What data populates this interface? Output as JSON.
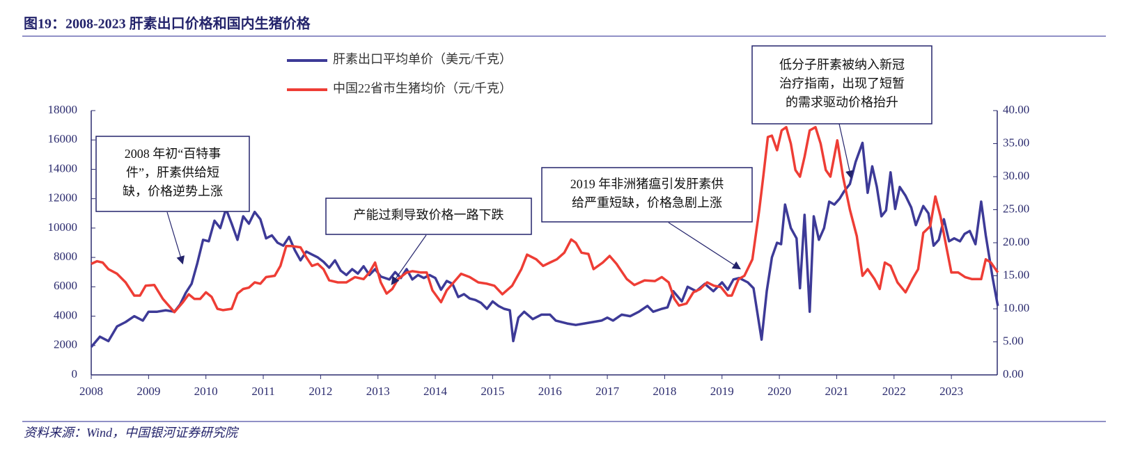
{
  "chart_data": {
    "type": "line",
    "title": "图19：2008-2023 肝素出口价格和国内生猪价格",
    "source": "资料来源：Wind，中国银河证券研究院",
    "xlim": [
      2008,
      2023.8
    ],
    "xticks": [
      2008,
      2009,
      2010,
      2011,
      2012,
      2013,
      2014,
      2015,
      2016,
      2017,
      2018,
      2019,
      2020,
      2021,
      2022,
      2023
    ],
    "ylim": [
      0,
      18000
    ],
    "yticks": [
      0,
      2000,
      4000,
      6000,
      8000,
      10000,
      12000,
      14000,
      16000,
      18000
    ],
    "y2lim": [
      0,
      40
    ],
    "y2ticks": [
      {
        "value": 0,
        "label": "0.00"
      },
      {
        "value": 5,
        "label": "5.00"
      },
      {
        "value": 10,
        "label": "10.00"
      },
      {
        "value": 15,
        "label": "15.00"
      },
      {
        "value": 20,
        "label": "20.00"
      },
      {
        "value": 25,
        "label": "25.00"
      },
      {
        "value": 30,
        "label": "30.00"
      },
      {
        "value": 35,
        "label": "35.00"
      },
      {
        "value": 40,
        "label": "40.00"
      }
    ],
    "legend": "top-left",
    "series": [
      {
        "name": "肝素出口平均单价（美元/千克）",
        "color": "#3d3a97",
        "axis": "y",
        "x": [
          2008.0,
          2008.15,
          2008.3,
          2008.45,
          2008.6,
          2008.75,
          2008.9,
          2009.0,
          2009.15,
          2009.3,
          2009.45,
          2009.55,
          2009.65,
          2009.75,
          2009.85,
          2009.95,
          2010.05,
          2010.15,
          2010.25,
          2010.35,
          2010.45,
          2010.55,
          2010.65,
          2010.75,
          2010.85,
          2010.95,
          2011.05,
          2011.15,
          2011.25,
          2011.35,
          2011.45,
          2011.55,
          2011.65,
          2011.75,
          2011.85,
          2011.95,
          2012.05,
          2012.15,
          2012.25,
          2012.35,
          2012.45,
          2012.55,
          2012.65,
          2012.75,
          2012.85,
          2012.95,
          2013.05,
          2013.2,
          2013.3,
          2013.4,
          2013.5,
          2013.6,
          2013.7,
          2013.8,
          2013.9,
          2014.0,
          2014.1,
          2014.2,
          2014.3,
          2014.4,
          2014.5,
          2014.6,
          2014.7,
          2014.8,
          2014.9,
          2015.0,
          2015.1,
          2015.2,
          2015.3,
          2015.36,
          2015.45,
          2015.55,
          2015.7,
          2015.85,
          2016.0,
          2016.1,
          2016.3,
          2016.45,
          2016.6,
          2016.75,
          2016.9,
          2017.0,
          2017.1,
          2017.25,
          2017.4,
          2017.55,
          2017.7,
          2017.8,
          2017.95,
          2018.05,
          2018.15,
          2018.3,
          2018.4,
          2018.55,
          2018.7,
          2018.85,
          2019.0,
          2019.1,
          2019.2,
          2019.3,
          2019.45,
          2019.55,
          2019.69,
          2019.78,
          2019.87,
          2019.96,
          2020.03,
          2020.1,
          2020.2,
          2020.3,
          2020.36,
          2020.44,
          2020.53,
          2020.6,
          2020.69,
          2020.78,
          2020.87,
          2020.96,
          2021.05,
          2021.13,
          2021.23,
          2021.33,
          2021.45,
          2021.54,
          2021.62,
          2021.7,
          2021.78,
          2021.86,
          2021.94,
          2022.02,
          2022.1,
          2022.2,
          2022.3,
          2022.38,
          2022.51,
          2022.6,
          2022.69,
          2022.78,
          2022.87,
          2022.96,
          2023.05,
          2023.15,
          2023.23,
          2023.32,
          2023.42,
          2023.52,
          2023.6,
          2023.72,
          2023.81
        ],
        "values": [
          1900,
          2600,
          2300,
          3300,
          3600,
          4000,
          3700,
          4300,
          4300,
          4400,
          4300,
          4800,
          5600,
          6200,
          7600,
          9200,
          9100,
          10500,
          10000,
          11300,
          10300,
          9200,
          10800,
          10300,
          11100,
          10600,
          9300,
          9500,
          9000,
          8800,
          9400,
          8500,
          7800,
          8400,
          8200,
          8000,
          7700,
          7300,
          7800,
          7100,
          6800,
          7200,
          6900,
          7400,
          6800,
          7200,
          6700,
          6500,
          7000,
          6600,
          7200,
          6500,
          6800,
          6600,
          6800,
          6600,
          5800,
          6400,
          6200,
          5300,
          5500,
          5200,
          5100,
          4900,
          4500,
          5000,
          4700,
          4500,
          4400,
          2300,
          3900,
          4300,
          3800,
          4100,
          4100,
          3700,
          3500,
          3400,
          3500,
          3600,
          3700,
          3900,
          3700,
          4100,
          4000,
          4300,
          4700,
          4300,
          4500,
          4600,
          5700,
          5000,
          6000,
          5700,
          6200,
          5700,
          6300,
          5800,
          6500,
          6600,
          6300,
          5900,
          2400,
          5700,
          8000,
          9000,
          8900,
          11600,
          10000,
          9300,
          5900,
          10900,
          4300,
          10800,
          9200,
          10000,
          11800,
          11600,
          12000,
          12500,
          13000,
          14500,
          15800,
          12400,
          14200,
          12800,
          10800,
          11200,
          13800,
          11300,
          12800,
          12200,
          11400,
          10200,
          11500,
          11000,
          8800,
          9200,
          10600,
          9100,
          9300,
          9100,
          9600,
          9800,
          8900,
          11800,
          9500,
          6600,
          4700
        ]
      },
      {
        "name": "中国22省市生猪均价（元/千克）",
        "color": "#ee3d35",
        "axis": "y2",
        "x": [
          2008.0,
          2008.1,
          2008.2,
          2008.3,
          2008.45,
          2008.6,
          2008.75,
          2008.85,
          2008.95,
          2009.1,
          2009.25,
          2009.35,
          2009.45,
          2009.6,
          2009.7,
          2009.8,
          2009.9,
          2010.0,
          2010.1,
          2010.2,
          2010.3,
          2010.45,
          2010.55,
          2010.65,
          2010.75,
          2010.85,
          2010.95,
          2011.05,
          2011.2,
          2011.3,
          2011.4,
          2011.5,
          2011.65,
          2011.75,
          2011.85,
          2011.95,
          2012.05,
          2012.15,
          2012.3,
          2012.45,
          2012.6,
          2012.75,
          2012.85,
          2012.95,
          2013.05,
          2013.15,
          2013.25,
          2013.35,
          2013.5,
          2013.6,
          2013.75,
          2013.85,
          2013.95,
          2014.1,
          2014.2,
          2014.3,
          2014.45,
          2014.6,
          2014.75,
          2014.9,
          2015.03,
          2015.17,
          2015.34,
          2015.5,
          2015.6,
          2015.76,
          2015.88,
          2016.0,
          2016.12,
          2016.25,
          2016.37,
          2016.45,
          2016.55,
          2016.67,
          2016.76,
          2016.92,
          2017.04,
          2017.16,
          2017.34,
          2017.47,
          2017.65,
          2017.83,
          2017.95,
          2018.07,
          2018.17,
          2018.25,
          2018.38,
          2018.5,
          2018.62,
          2018.74,
          2018.86,
          2018.98,
          2019.1,
          2019.17,
          2019.29,
          2019.39,
          2019.53,
          2019.65,
          2019.72,
          2019.8,
          2019.87,
          2019.96,
          2020.04,
          2020.12,
          2020.2,
          2020.28,
          2020.36,
          2020.44,
          2020.53,
          2020.63,
          2020.72,
          2020.81,
          2020.89,
          2021.01,
          2021.11,
          2021.23,
          2021.35,
          2021.45,
          2021.54,
          2021.66,
          2021.75,
          2021.84,
          2021.94,
          2022.06,
          2022.2,
          2022.32,
          2022.42,
          2022.51,
          2022.63,
          2022.72,
          2022.81,
          2022.91,
          2023.0,
          2023.12,
          2023.24,
          2023.36,
          2023.52,
          2023.6,
          2023.69,
          2023.81
        ],
        "values": [
          16.8,
          17.2,
          17.0,
          16.0,
          15.3,
          14.0,
          12.0,
          12.0,
          13.5,
          13.6,
          11.5,
          10.5,
          9.5,
          11.0,
          12.2,
          11.5,
          11.5,
          12.5,
          11.8,
          10.0,
          9.8,
          10.0,
          12.3,
          13.0,
          13.2,
          14.0,
          13.8,
          14.8,
          15.0,
          16.5,
          19.5,
          19.5,
          19.3,
          17.8,
          16.5,
          16.8,
          16.0,
          14.3,
          14.0,
          14.0,
          14.8,
          14.5,
          15.5,
          17.0,
          14.0,
          12.3,
          13.0,
          14.5,
          15.5,
          15.7,
          15.5,
          15.5,
          12.8,
          11.0,
          12.8,
          13.8,
          15.3,
          14.8,
          14.0,
          13.8,
          13.5,
          12.2,
          13.5,
          16.0,
          18.2,
          17.5,
          16.5,
          17.0,
          17.5,
          18.5,
          20.5,
          20.0,
          18.5,
          18.3,
          16.0,
          17.0,
          18.0,
          16.8,
          14.5,
          13.6,
          14.3,
          14.2,
          14.8,
          14.0,
          11.5,
          10.5,
          10.8,
          12.5,
          13.0,
          14.0,
          13.5,
          13.3,
          12.0,
          12.0,
          14.5,
          15.0,
          17.5,
          25,
          30,
          36.0,
          36.2,
          34.0,
          37.0,
          37.5,
          35,
          31,
          30,
          33,
          37,
          37.5,
          35,
          31,
          30,
          35.5,
          30,
          25,
          21,
          15.0,
          16.0,
          14.5,
          13.0,
          17.0,
          16.5,
          14.0,
          12.5,
          14.5,
          16.0,
          21.5,
          22.5,
          27,
          24,
          19.5,
          15.5,
          15.5,
          14.8,
          14.5,
          14.5,
          17.5,
          17.0,
          15.5
        ]
      }
    ],
    "annotations": [
      {
        "lines": [
          "2008 年初“百特事",
          "件”，肝素供给短",
          "缺，价格逆势上涨"
        ]
      },
      {
        "lines": [
          "产能过剩导致价格一路下跌"
        ]
      },
      {
        "lines": [
          "2019 年非洲猪瘟引发肝素供",
          "给严重短缺，价格急剧上涨"
        ]
      },
      {
        "lines": [
          "低分子肝素被纳入新冠",
          "治疗指南，出现了短暂",
          "的需求驱动价格抬升"
        ]
      }
    ]
  }
}
